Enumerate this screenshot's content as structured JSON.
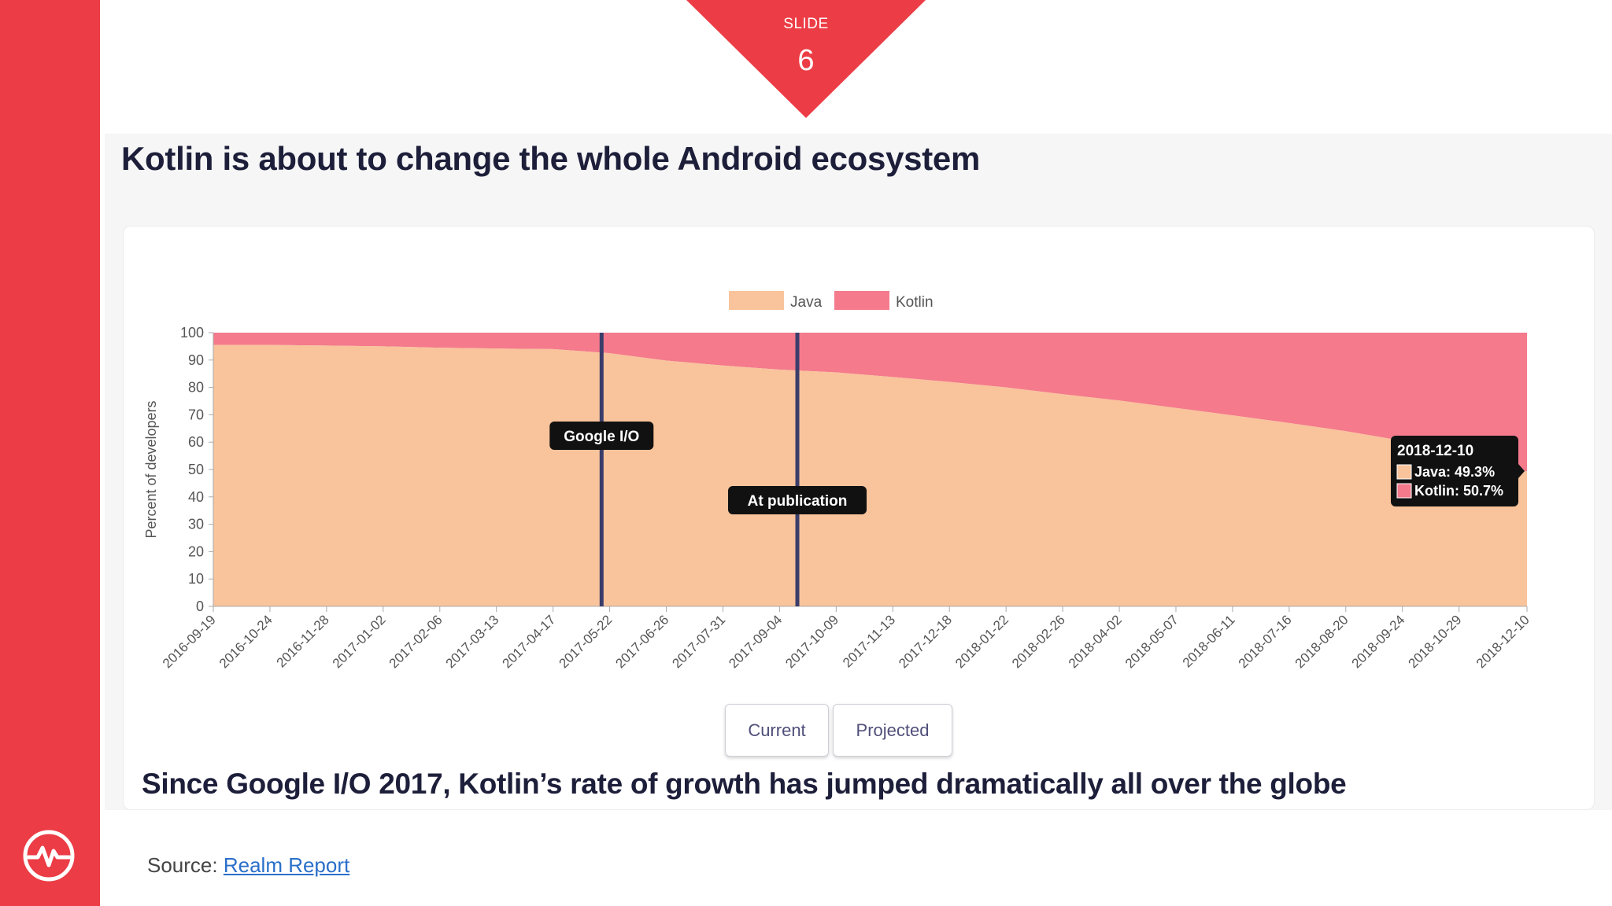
{
  "slide": {
    "label": "SLIDE",
    "number": "6"
  },
  "title": "Kotlin is about to change the whole Android ecosystem",
  "subtitle": "Since Google I/O 2017, Kotlin’s rate of growth has jumped dramatically all over the globe",
  "source": {
    "prefix": "Source:",
    "link_text": "Realm Report"
  },
  "buttons": {
    "current": "Current",
    "projected": "Projected"
  },
  "colors": {
    "accent": "#ec3c45",
    "java": "#f9c39b",
    "kotlin": "#f47a8c",
    "marker": "#3b3d6b",
    "tooltip_bg": "#111111"
  },
  "chart_data": {
    "type": "area",
    "stacked": true,
    "ylabel": "Percent of developers",
    "ylim": [
      0,
      100
    ],
    "yticks": [
      0,
      10,
      20,
      30,
      40,
      50,
      60,
      70,
      80,
      90,
      100
    ],
    "legend_position": "top-center",
    "x": [
      "2016-09-19",
      "2016-10-24",
      "2016-11-28",
      "2017-01-02",
      "2017-02-06",
      "2017-03-13",
      "2017-04-17",
      "2017-05-22",
      "2017-06-26",
      "2017-07-31",
      "2017-09-04",
      "2017-10-09",
      "2017-11-13",
      "2017-12-18",
      "2018-01-22",
      "2018-02-26",
      "2018-04-02",
      "2018-05-07",
      "2018-06-11",
      "2018-07-16",
      "2018-08-20",
      "2018-09-24",
      "2018-10-29",
      "2018-12-10"
    ],
    "series": [
      {
        "name": "Java",
        "values": [
          95.5,
          95.5,
          95.3,
          95.0,
          94.5,
          94.2,
          94.0,
          92.5,
          89.8,
          88.0,
          86.5,
          85.5,
          83.8,
          82.0,
          80.0,
          77.5,
          75.2,
          72.5,
          69.8,
          67.0,
          64.0,
          60.5,
          55.5,
          49.3
        ]
      },
      {
        "name": "Kotlin",
        "values": [
          4.5,
          4.5,
          4.7,
          5.0,
          5.5,
          5.8,
          6.0,
          7.5,
          10.2,
          12.0,
          13.5,
          14.5,
          16.2,
          18.0,
          20.0,
          22.5,
          24.8,
          27.5,
          30.2,
          33.0,
          36.0,
          39.5,
          44.5,
          50.7
        ]
      }
    ],
    "annotations": [
      {
        "label": "Google I/O",
        "x": "2017-05-17"
      },
      {
        "label": "At publication",
        "x": "2017-09-15"
      }
    ],
    "tooltip": {
      "date": "2018-12-10",
      "lines": [
        "Java: 49.3%",
        "Kotlin: 50.7%"
      ]
    }
  }
}
